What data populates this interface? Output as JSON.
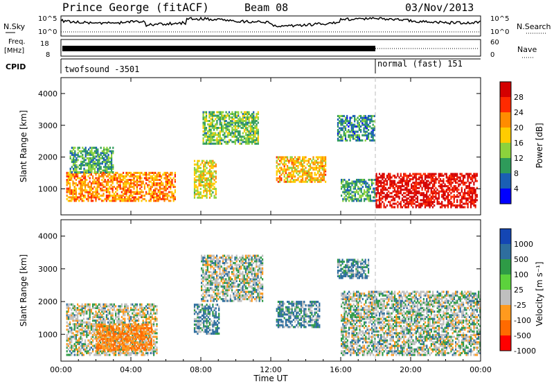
{
  "header": {
    "station": "Prince George (fitACF)",
    "beam": "Beam 08",
    "date": "03/Nov/2013"
  },
  "params": {
    "nsky_label": "N.Sky",
    "nsky_ticks": [
      "10^5",
      "10^0"
    ],
    "nsearch_label": "N.Search",
    "freq_label_1": "Freq.",
    "freq_label_2": "[MHz]",
    "freq_ticks": [
      "18",
      "8"
    ],
    "nave_label": "Nave",
    "nave_ticks": [
      "60",
      "0"
    ],
    "cpid_label": "CPID",
    "cpid_segments": [
      "twofsound -3501",
      "normal (fast) 151"
    ]
  },
  "panels": {
    "power": {
      "ylabel": "Slant Range [km]",
      "yticks": [
        "1000",
        "2000",
        "3000",
        "4000"
      ],
      "colorbar_label": "Power [dB]",
      "colorbar_ticks": [
        "28",
        "24",
        "20",
        "16",
        "12",
        "8",
        "4"
      ]
    },
    "velocity": {
      "ylabel": "Slant Range [km]",
      "yticks": [
        "1000",
        "2000",
        "3000",
        "4000"
      ],
      "colorbar_label": "Velocity  [m s⁻¹]",
      "colorbar_ticks": [
        "1000",
        "500",
        "100",
        "25",
        "-25",
        "-100",
        "-500",
        "-1000"
      ]
    }
  },
  "xaxis": {
    "label": "Time UT",
    "ticks": [
      "00:00",
      "04:00",
      "08:00",
      "12:00",
      "16:00",
      "20:00",
      "00:00"
    ]
  },
  "colors": {
    "power_scale": [
      "#d40000",
      "#ff2a00",
      "#ff8c00",
      "#ffcc00",
      "#8cd23c",
      "#2e9b5a",
      "#1a5fb4",
      "#0000ff"
    ],
    "velocity_scale": [
      "#1446b4",
      "#2e6e9e",
      "#2e9b46",
      "#5cd23c",
      "#bfbfbf",
      "#ff9a1e",
      "#ff6a00",
      "#ff0000"
    ]
  },
  "chart_data": [
    {
      "type": "heatmap",
      "title": "Power",
      "x_range_hours": [
        0,
        24
      ],
      "ylim": [
        180,
        4500
      ],
      "colorbar_range": [
        0,
        30
      ],
      "regions": [
        {
          "t": [
            0.3,
            6.5
          ],
          "r": [
            600,
            1500
          ],
          "power": 20
        },
        {
          "t": [
            0.5,
            3.0
          ],
          "r": [
            1500,
            2300
          ],
          "power": 10
        },
        {
          "t": [
            7.6,
            8.9
          ],
          "r": [
            700,
            1900
          ],
          "power": 16
        },
        {
          "t": [
            8.1,
            11.3
          ],
          "r": [
            2400,
            3400
          ],
          "power": 12
        },
        {
          "t": [
            12.3,
            15.1
          ],
          "r": [
            1200,
            2000
          ],
          "power": 18
        },
        {
          "t": [
            15.8,
            17.9
          ],
          "r": [
            2500,
            3300
          ],
          "power": 8
        },
        {
          "t": [
            16.0,
            18.0
          ],
          "r": [
            600,
            1300
          ],
          "power": 10
        },
        {
          "t": [
            18.0,
            23.8
          ],
          "r": [
            400,
            1500
          ],
          "power": 28
        }
      ]
    },
    {
      "type": "heatmap",
      "title": "Velocity",
      "x_range_hours": [
        0,
        24
      ],
      "ylim": [
        180,
        4500
      ],
      "colorbar_range": [
        -1000,
        1000
      ],
      "regions": [
        {
          "t": [
            0.3,
            5.5
          ],
          "r": [
            350,
            1900
          ],
          "velocity": -25
        },
        {
          "t": [
            2.0,
            5.2
          ],
          "r": [
            500,
            1300
          ],
          "velocity": -500
        },
        {
          "t": [
            7.6,
            9.0
          ],
          "r": [
            1000,
            1900
          ],
          "velocity": 100
        },
        {
          "t": [
            8.0,
            11.5
          ],
          "r": [
            2000,
            3400
          ],
          "velocity": 0
        },
        {
          "t": [
            12.3,
            14.8
          ],
          "r": [
            1200,
            2000
          ],
          "velocity": 100
        },
        {
          "t": [
            15.8,
            17.6
          ],
          "r": [
            2700,
            3300
          ],
          "velocity": 100
        },
        {
          "t": [
            16.0,
            24.0
          ],
          "r": [
            350,
            2300
          ],
          "velocity": 0
        }
      ]
    }
  ]
}
